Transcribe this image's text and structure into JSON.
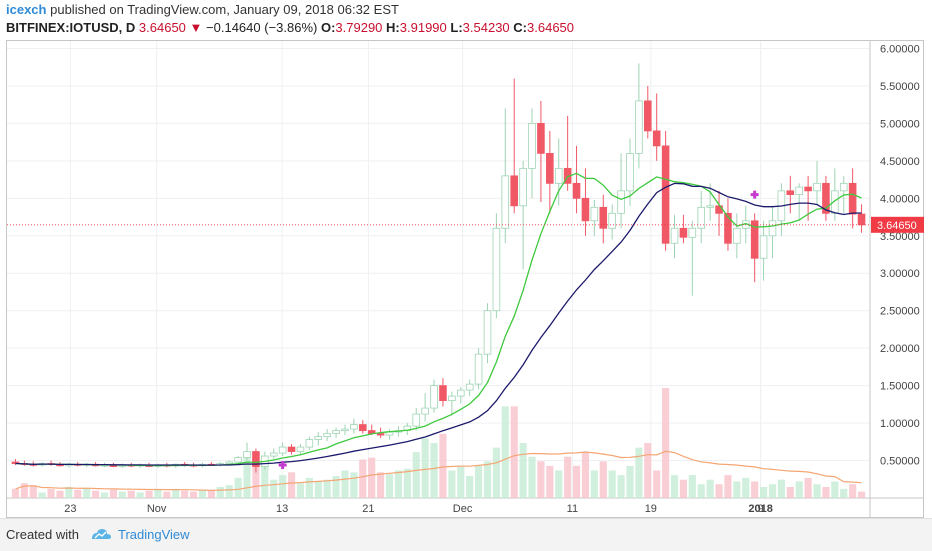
{
  "header": {
    "author": "icexch",
    "published": "published on TradingView.com, January 09, 2018 06:32 EST",
    "symbol": "BITFINEX:IOTUSD, D",
    "last": "3.64650",
    "change": "−0.14640 (−3.86%)",
    "ohlc": {
      "o_label": "O:",
      "o": "3.79290",
      "h_label": "H:",
      "h": "3.91990",
      "l_label": "L:",
      "l": "3.54230",
      "c_label": "C:",
      "c": "3.64650"
    }
  },
  "footer": {
    "created_with": "Created with",
    "brand": "TradingView"
  },
  "colors": {
    "up": "#bfe6d0",
    "down": "#f05866",
    "ma_fast": "#3ec93e",
    "ma_slow": "#1c1a6b",
    "volume_ma": "#f4a674",
    "price_line": "#f03a44"
  },
  "chart_data": {
    "type": "candlestick",
    "x_ticks": [
      "23",
      "Nov",
      "13",
      "21",
      "Dec",
      "11",
      "19",
      "2018",
      "9"
    ],
    "y_ticks": [
      "6.00000",
      "5.50000",
      "5.00000",
      "4.50000",
      "4.00000",
      "3.50000",
      "3.00000",
      "2.50000",
      "2.00000",
      "1.50000",
      "1.00000",
      "0.50000"
    ],
    "y_range": [
      0.0,
      6.1
    ],
    "last_price_label": "3.64650",
    "last_price": 3.6465,
    "candles": [
      {
        "o": 0.48,
        "h": 0.52,
        "l": 0.44,
        "c": 0.46,
        "v": 10
      },
      {
        "o": 0.46,
        "h": 0.5,
        "l": 0.43,
        "c": 0.45,
        "v": 16
      },
      {
        "o": 0.45,
        "h": 0.49,
        "l": 0.42,
        "c": 0.44,
        "v": 14
      },
      {
        "o": 0.44,
        "h": 0.48,
        "l": 0.42,
        "c": 0.46,
        "v": 6
      },
      {
        "o": 0.46,
        "h": 0.5,
        "l": 0.43,
        "c": 0.45,
        "v": 10
      },
      {
        "o": 0.45,
        "h": 0.48,
        "l": 0.42,
        "c": 0.43,
        "v": 8
      },
      {
        "o": 0.43,
        "h": 0.47,
        "l": 0.41,
        "c": 0.45,
        "v": 12
      },
      {
        "o": 0.45,
        "h": 0.48,
        "l": 0.42,
        "c": 0.44,
        "v": 9
      },
      {
        "o": 0.44,
        "h": 0.47,
        "l": 0.41,
        "c": 0.45,
        "v": 11
      },
      {
        "o": 0.45,
        "h": 0.48,
        "l": 0.42,
        "c": 0.43,
        "v": 8
      },
      {
        "o": 0.43,
        "h": 0.47,
        "l": 0.41,
        "c": 0.44,
        "v": 6
      },
      {
        "o": 0.44,
        "h": 0.47,
        "l": 0.41,
        "c": 0.42,
        "v": 9
      },
      {
        "o": 0.42,
        "h": 0.46,
        "l": 0.4,
        "c": 0.44,
        "v": 7
      },
      {
        "o": 0.44,
        "h": 0.47,
        "l": 0.41,
        "c": 0.43,
        "v": 8
      },
      {
        "o": 0.43,
        "h": 0.46,
        "l": 0.4,
        "c": 0.44,
        "v": 6
      },
      {
        "o": 0.44,
        "h": 0.47,
        "l": 0.41,
        "c": 0.42,
        "v": 8
      },
      {
        "o": 0.42,
        "h": 0.46,
        "l": 0.4,
        "c": 0.44,
        "v": 9
      },
      {
        "o": 0.44,
        "h": 0.47,
        "l": 0.41,
        "c": 0.43,
        "v": 7
      },
      {
        "o": 0.43,
        "h": 0.46,
        "l": 0.4,
        "c": 0.45,
        "v": 10
      },
      {
        "o": 0.45,
        "h": 0.48,
        "l": 0.42,
        "c": 0.44,
        "v": 8
      },
      {
        "o": 0.44,
        "h": 0.47,
        "l": 0.41,
        "c": 0.43,
        "v": 7
      },
      {
        "o": 0.43,
        "h": 0.47,
        "l": 0.41,
        "c": 0.45,
        "v": 9
      },
      {
        "o": 0.45,
        "h": 0.48,
        "l": 0.43,
        "c": 0.44,
        "v": 8
      },
      {
        "o": 0.44,
        "h": 0.48,
        "l": 0.42,
        "c": 0.46,
        "v": 12
      },
      {
        "o": 0.46,
        "h": 0.5,
        "l": 0.43,
        "c": 0.48,
        "v": 14
      },
      {
        "o": 0.48,
        "h": 0.56,
        "l": 0.44,
        "c": 0.54,
        "v": 22
      },
      {
        "o": 0.54,
        "h": 0.74,
        "l": 0.5,
        "c": 0.62,
        "v": 45
      },
      {
        "o": 0.62,
        "h": 0.66,
        "l": 0.34,
        "c": 0.42,
        "v": 40
      },
      {
        "o": 0.42,
        "h": 0.62,
        "l": 0.38,
        "c": 0.56,
        "v": 35
      },
      {
        "o": 0.56,
        "h": 0.66,
        "l": 0.52,
        "c": 0.6,
        "v": 20
      },
      {
        "o": 0.6,
        "h": 0.74,
        "l": 0.56,
        "c": 0.68,
        "v": 25
      },
      {
        "o": 0.68,
        "h": 0.72,
        "l": 0.58,
        "c": 0.62,
        "v": 28
      },
      {
        "o": 0.62,
        "h": 0.72,
        "l": 0.58,
        "c": 0.68,
        "v": 16
      },
      {
        "o": 0.68,
        "h": 0.82,
        "l": 0.64,
        "c": 0.78,
        "v": 22
      },
      {
        "o": 0.78,
        "h": 0.88,
        "l": 0.7,
        "c": 0.82,
        "v": 18
      },
      {
        "o": 0.82,
        "h": 0.92,
        "l": 0.76,
        "c": 0.86,
        "v": 20
      },
      {
        "o": 0.86,
        "h": 0.94,
        "l": 0.8,
        "c": 0.9,
        "v": 24
      },
      {
        "o": 0.9,
        "h": 0.98,
        "l": 0.84,
        "c": 0.92,
        "v": 30
      },
      {
        "o": 0.92,
        "h": 1.06,
        "l": 0.86,
        "c": 0.98,
        "v": 28
      },
      {
        "o": 0.98,
        "h": 1.04,
        "l": 0.86,
        "c": 0.9,
        "v": 42
      },
      {
        "o": 0.9,
        "h": 0.98,
        "l": 0.84,
        "c": 0.86,
        "v": 44
      },
      {
        "o": 0.86,
        "h": 0.94,
        "l": 0.8,
        "c": 0.84,
        "v": 28
      },
      {
        "o": 0.84,
        "h": 0.92,
        "l": 0.78,
        "c": 0.88,
        "v": 26
      },
      {
        "o": 0.88,
        "h": 0.96,
        "l": 0.82,
        "c": 0.9,
        "v": 30
      },
      {
        "o": 0.9,
        "h": 1.0,
        "l": 0.84,
        "c": 0.96,
        "v": 32
      },
      {
        "o": 0.96,
        "h": 1.2,
        "l": 0.9,
        "c": 1.12,
        "v": 50
      },
      {
        "o": 1.12,
        "h": 1.4,
        "l": 1.02,
        "c": 1.2,
        "v": 65
      },
      {
        "o": 1.2,
        "h": 1.58,
        "l": 1.14,
        "c": 1.5,
        "v": 60
      },
      {
        "o": 1.5,
        "h": 1.6,
        "l": 1.22,
        "c": 1.3,
        "v": 70
      },
      {
        "o": 1.3,
        "h": 1.42,
        "l": 1.1,
        "c": 1.36,
        "v": 30
      },
      {
        "o": 1.36,
        "h": 1.48,
        "l": 1.26,
        "c": 1.44,
        "v": 34
      },
      {
        "o": 1.44,
        "h": 1.58,
        "l": 1.36,
        "c": 1.52,
        "v": 24
      },
      {
        "o": 1.52,
        "h": 2.0,
        "l": 1.45,
        "c": 1.92,
        "v": 35
      },
      {
        "o": 1.92,
        "h": 2.6,
        "l": 1.8,
        "c": 2.5,
        "v": 40
      },
      {
        "o": 2.5,
        "h": 3.8,
        "l": 2.4,
        "c": 3.6,
        "v": 55
      },
      {
        "o": 3.6,
        "h": 5.2,
        "l": 3.4,
        "c": 4.3,
        "v": 100
      },
      {
        "o": 4.3,
        "h": 5.6,
        "l": 3.8,
        "c": 3.9,
        "v": 100
      },
      {
        "o": 3.9,
        "h": 4.5,
        "l": 3.05,
        "c": 4.4,
        "v": 60
      },
      {
        "o": 4.4,
        "h": 5.2,
        "l": 4.0,
        "c": 5.0,
        "v": 45
      },
      {
        "o": 5.0,
        "h": 5.3,
        "l": 3.95,
        "c": 4.6,
        "v": 40
      },
      {
        "o": 4.6,
        "h": 4.9,
        "l": 3.8,
        "c": 4.2,
        "v": 35
      },
      {
        "o": 4.2,
        "h": 4.8,
        "l": 3.9,
        "c": 4.4,
        "v": 30
      },
      {
        "o": 4.4,
        "h": 5.1,
        "l": 4.1,
        "c": 4.2,
        "v": 45
      },
      {
        "o": 4.2,
        "h": 4.7,
        "l": 3.8,
        "c": 4.0,
        "v": 35
      },
      {
        "o": 4.0,
        "h": 4.4,
        "l": 3.5,
        "c": 3.7,
        "v": 50
      },
      {
        "o": 3.7,
        "h": 3.98,
        "l": 3.5,
        "c": 3.88,
        "v": 30
      },
      {
        "o": 3.88,
        "h": 4.05,
        "l": 3.4,
        "c": 3.6,
        "v": 40
      },
      {
        "o": 3.6,
        "h": 3.92,
        "l": 3.45,
        "c": 3.8,
        "v": 30
      },
      {
        "o": 3.8,
        "h": 4.6,
        "l": 3.6,
        "c": 4.1,
        "v": 25
      },
      {
        "o": 4.1,
        "h": 4.8,
        "l": 3.9,
        "c": 4.6,
        "v": 35
      },
      {
        "o": 4.6,
        "h": 5.8,
        "l": 4.4,
        "c": 5.3,
        "v": 55
      },
      {
        "o": 5.3,
        "h": 5.5,
        "l": 4.8,
        "c": 4.9,
        "v": 60
      },
      {
        "o": 4.9,
        "h": 5.4,
        "l": 4.5,
        "c": 4.7,
        "v": 30
      },
      {
        "o": 4.7,
        "h": 4.9,
        "l": 3.3,
        "c": 3.4,
        "v": 120
      },
      {
        "o": 3.4,
        "h": 3.78,
        "l": 3.2,
        "c": 3.6,
        "v": 25
      },
      {
        "o": 3.6,
        "h": 3.78,
        "l": 3.4,
        "c": 3.48,
        "v": 20
      },
      {
        "o": 3.48,
        "h": 3.7,
        "l": 2.7,
        "c": 3.6,
        "v": 25
      },
      {
        "o": 3.6,
        "h": 4.1,
        "l": 3.4,
        "c": 3.88,
        "v": 15
      },
      {
        "o": 3.88,
        "h": 4.2,
        "l": 3.7,
        "c": 3.9,
        "v": 20
      },
      {
        "o": 3.9,
        "h": 4.1,
        "l": 3.5,
        "c": 3.8,
        "v": 15
      },
      {
        "o": 3.8,
        "h": 4.0,
        "l": 3.3,
        "c": 3.4,
        "v": 25
      },
      {
        "o": 3.4,
        "h": 3.8,
        "l": 3.2,
        "c": 3.6,
        "v": 18
      },
      {
        "o": 3.6,
        "h": 3.9,
        "l": 3.4,
        "c": 3.7,
        "v": 22
      },
      {
        "o": 3.7,
        "h": 3.8,
        "l": 2.88,
        "c": 3.2,
        "v": 18
      },
      {
        "o": 3.2,
        "h": 3.7,
        "l": 2.9,
        "c": 3.5,
        "v": 12
      },
      {
        "o": 3.5,
        "h": 3.9,
        "l": 3.2,
        "c": 3.7,
        "v": 15
      },
      {
        "o": 3.7,
        "h": 4.2,
        "l": 3.5,
        "c": 4.1,
        "v": 20
      },
      {
        "o": 4.1,
        "h": 4.3,
        "l": 3.8,
        "c": 4.05,
        "v": 12
      },
      {
        "o": 4.05,
        "h": 4.2,
        "l": 3.7,
        "c": 4.15,
        "v": 18
      },
      {
        "o": 4.15,
        "h": 4.3,
        "l": 3.7,
        "c": 4.1,
        "v": 22
      },
      {
        "o": 4.1,
        "h": 4.5,
        "l": 3.9,
        "c": 4.2,
        "v": 15
      },
      {
        "o": 4.2,
        "h": 4.3,
        "l": 3.7,
        "c": 3.8,
        "v": 12
      },
      {
        "o": 3.8,
        "h": 4.4,
        "l": 3.7,
        "c": 4.1,
        "v": 18
      },
      {
        "o": 4.1,
        "h": 4.3,
        "l": 3.8,
        "c": 4.2,
        "v": 10
      },
      {
        "o": 4.2,
        "h": 4.4,
        "l": 3.6,
        "c": 3.79,
        "v": 15
      },
      {
        "o": 3.79,
        "h": 3.92,
        "l": 3.54,
        "c": 3.6465,
        "v": 7
      }
    ]
  }
}
